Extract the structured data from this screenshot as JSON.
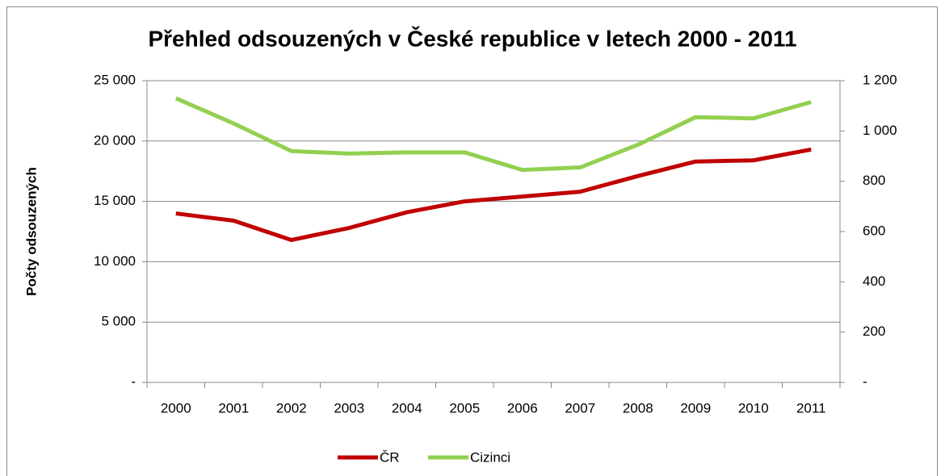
{
  "chart_data": {
    "type": "line",
    "title": "Přehled odsouzených v České republice v letech 2000 - 2011",
    "y_label": "Počty odsouzených",
    "categories": [
      "2000",
      "2001",
      "2002",
      "2003",
      "2004",
      "2005",
      "2006",
      "2007",
      "2008",
      "2009",
      "2010",
      "2011"
    ],
    "series": [
      {
        "name": "ČR",
        "color": "#c00000",
        "values": [
          14000,
          13400,
          11800,
          12800,
          14100,
          15000,
          15400,
          15800,
          17100,
          18300,
          18400,
          19300
        ]
      },
      {
        "name": "Cizinci",
        "color": "#92d050",
        "axis": "y2",
        "values": [
          1130,
          1030,
          920,
          910,
          915,
          915,
          845,
          855,
          945,
          1055,
          1050,
          1115
        ]
      }
    ],
    "ylim": [
      0,
      25000
    ],
    "yticks": [
      {
        "value": 0,
        "label": "-"
      },
      {
        "value": 5000,
        "label": "5 000"
      },
      {
        "value": 10000,
        "label": "10 000"
      },
      {
        "value": 15000,
        "label": "15 000"
      },
      {
        "value": 20000,
        "label": "20 000"
      },
      {
        "value": 25000,
        "label": "25 000"
      }
    ],
    "y2lim": [
      0,
      1200
    ],
    "y2ticks": [
      {
        "value": 0,
        "label": "-"
      },
      200,
      400,
      600,
      800,
      {
        "value": 1000,
        "label": "1 000"
      },
      {
        "value": 1200,
        "label": "1 200"
      }
    ],
    "grid": true,
    "legend": "bottom"
  }
}
